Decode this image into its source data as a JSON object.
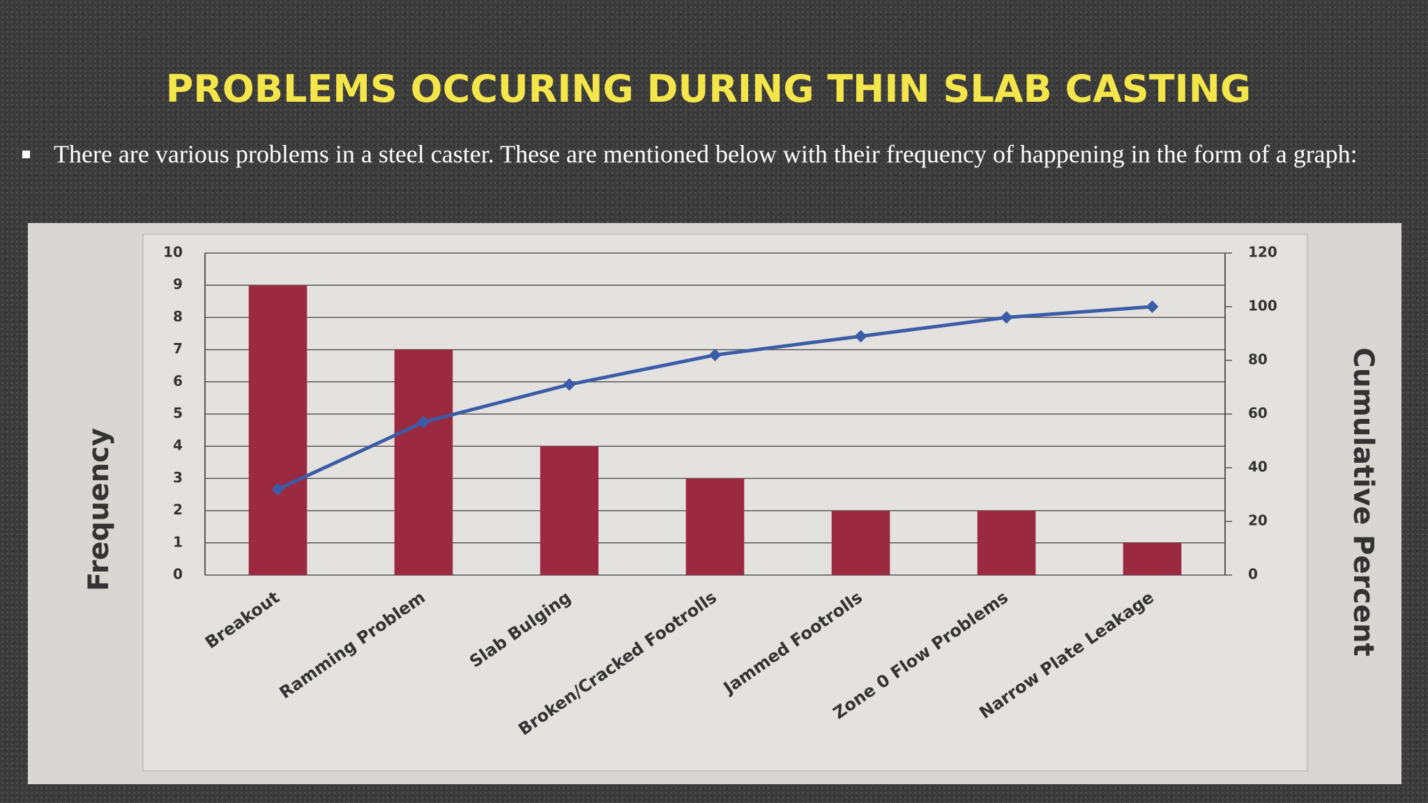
{
  "slide": {
    "title": "PROBLEMS OCCURING DURING THIN SLAB CASTING",
    "bullet": "There are various problems in a steel caster. These are mentioned below with their frequency of happening in the form of a graph:"
  },
  "chart_data": {
    "type": "bar",
    "categories": [
      "Breakout",
      "Ramming Problem",
      "Slab Bulging",
      "Broken/Cracked Footrolls",
      "Jammed Footrolls",
      "Zone 0 Flow Problems",
      "Narrow Plate Leakage"
    ],
    "series": [
      {
        "type": "bar",
        "color": "#9b2a40",
        "values": [
          9,
          7,
          4,
          3,
          2,
          2,
          1
        ]
      },
      {
        "type": "line",
        "axis": "y2",
        "color": "#3b5ca6",
        "values": [
          32,
          57,
          71,
          82,
          89,
          96,
          100
        ]
      }
    ],
    "y_label": "Frequency",
    "y2_label": "Cumulative Percent",
    "ylim": [
      0,
      10
    ],
    "yticks": [
      0,
      1,
      2,
      3,
      4,
      5,
      6,
      7,
      8,
      9,
      10
    ],
    "y2lim": [
      0,
      120
    ],
    "y2ticks": [
      0,
      20,
      40,
      60,
      80,
      100,
      120
    ],
    "grid": true
  }
}
